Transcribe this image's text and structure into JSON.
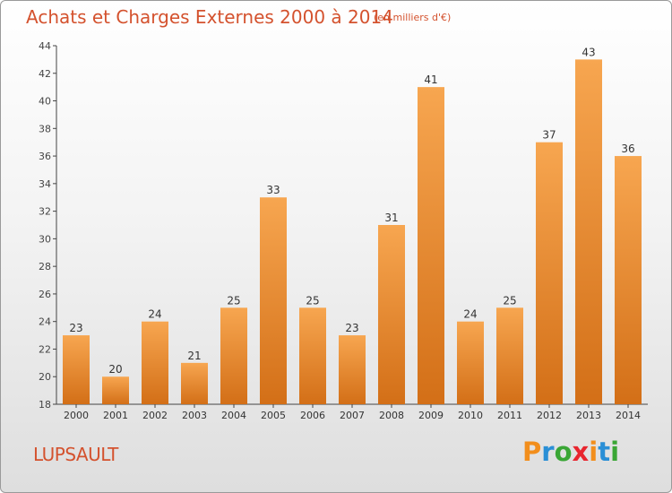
{
  "header": {
    "title": "Achats et Charges Externes 2000 à 2014",
    "subtitle": "(en milliers d'€)"
  },
  "footer": {
    "commune": "LUPSAULT",
    "brand": "Proxiti"
  },
  "colors": {
    "title": "#d4522e",
    "bar_top": "#f7a650",
    "bar_bottom": "#d36f17",
    "logo": [
      "#f28e1c",
      "#2a8fd6",
      "#3aa635",
      "#e8262f",
      "#f28e1c",
      "#2a8fd6",
      "#3aa635"
    ]
  },
  "chart_data": {
    "type": "bar",
    "title": "Achats et Charges Externes 2000 à 2014",
    "subtitle": "(en milliers d'€)",
    "xlabel": "",
    "ylabel": "",
    "categories": [
      "2000",
      "2001",
      "2002",
      "2003",
      "2004",
      "2005",
      "2006",
      "2007",
      "2008",
      "2009",
      "2010",
      "2011",
      "2012",
      "2013",
      "2014"
    ],
    "values": [
      23,
      20,
      24,
      21,
      25,
      33,
      25,
      23,
      31,
      41,
      24,
      25,
      37,
      43,
      36
    ],
    "ylim": [
      18,
      44
    ],
    "yticks": [
      18,
      20,
      22,
      24,
      26,
      28,
      30,
      32,
      34,
      36,
      38,
      40,
      42,
      44
    ],
    "grid": false,
    "data_labels": true
  }
}
